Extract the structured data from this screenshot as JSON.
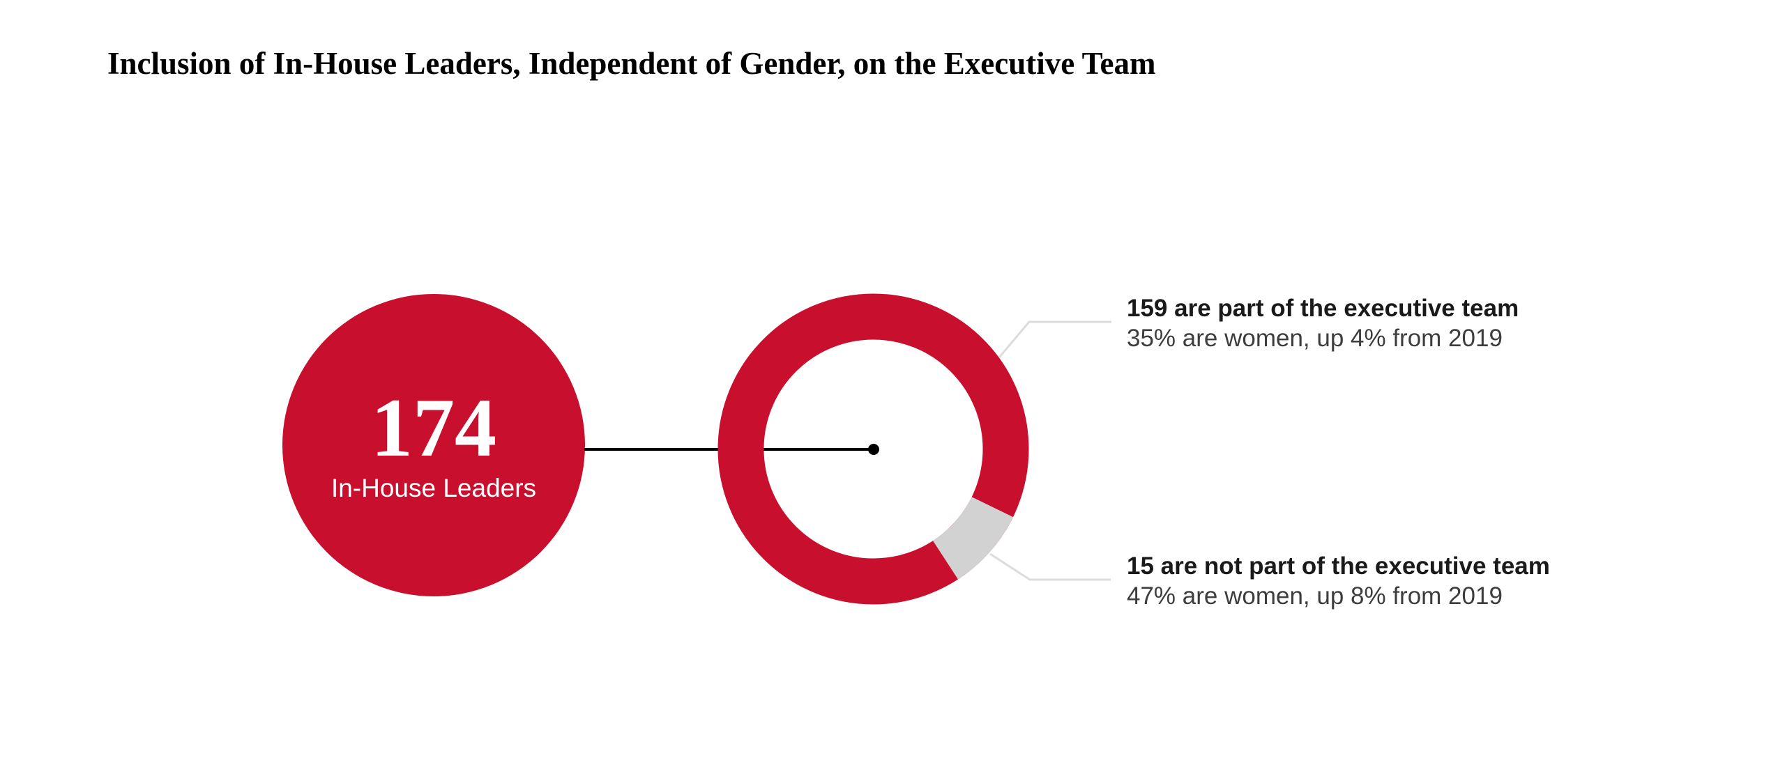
{
  "page": {
    "background": "#FFFFFF"
  },
  "title": {
    "text": "Inclusion of In-House Leaders, Independent of Gender, on the Executive Team"
  },
  "colors": {
    "red": "#C8102E",
    "slice2": "#D2D2D2",
    "connector": "#DCDCDC",
    "ink": "#000000",
    "text_strong": "#1A1A1A",
    "text_soft": "#3D3D3D"
  },
  "chart_data": {
    "type": "pie",
    "variant": "donut-with-total-circle",
    "title": "Inclusion of In-House Leaders, Independent of Gender, on the Executive Team",
    "total_label": {
      "value": "174",
      "label": "In-House Leaders"
    },
    "total": 174,
    "slices": [
      {
        "name": "part-of-executive-team",
        "value": 159,
        "color": "#C8102E",
        "annotation_line1": "159 are part of the executive team",
        "annotation_line2": "35% are women, up 4% from 2019"
      },
      {
        "name": "not-part-of-executive-team",
        "value": 15,
        "color": "#D2D2D2",
        "annotation_line1": "15 are not part of the executive team",
        "annotation_line2": "47% are women, up 8% from 2019"
      }
    ],
    "start_angle_deg": 147,
    "legend_position": "right-callouts",
    "grid": false
  }
}
